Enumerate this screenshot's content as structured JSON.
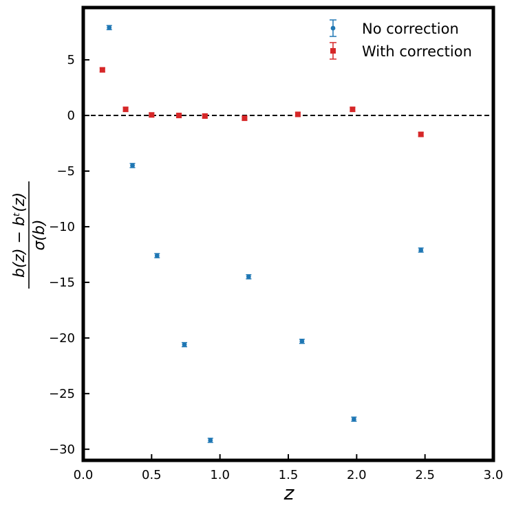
{
  "chart_data": {
    "type": "scatter",
    "title": "",
    "xlabel": "z",
    "ylabel_numerator": "b(z) − bᵗ(z)",
    "ylabel_denominator": "σ(b)",
    "xlim": [
      0.0,
      3.0
    ],
    "ylim": [
      -31.0,
      9.7
    ],
    "grid": false,
    "legend_position": "upper-right",
    "reference_line": {
      "y": 0,
      "style": "dashed",
      "color": "#000000"
    },
    "x_ticks": [
      {
        "value": 0.0,
        "label": "0.0"
      },
      {
        "value": 0.5,
        "label": "0.5"
      },
      {
        "value": 1.0,
        "label": "1.0"
      },
      {
        "value": 1.5,
        "label": "1.5"
      },
      {
        "value": 2.0,
        "label": "2.0"
      },
      {
        "value": 2.5,
        "label": "2.5"
      },
      {
        "value": 3.0,
        "label": "3.0"
      }
    ],
    "y_ticks": [
      {
        "value": 5,
        "label": "5"
      },
      {
        "value": 0,
        "label": "0"
      },
      {
        "value": -5,
        "label": "−5"
      },
      {
        "value": -10,
        "label": "−10"
      },
      {
        "value": -15,
        "label": "−15"
      },
      {
        "value": -20,
        "label": "−20"
      },
      {
        "value": -25,
        "label": "−25"
      },
      {
        "value": -30,
        "label": "−30"
      }
    ],
    "series": [
      {
        "name": "No correction",
        "color": "#1f77b4",
        "marker": "circle",
        "points": [
          {
            "x": 0.19,
            "y": 7.9
          },
          {
            "x": 0.36,
            "y": -4.5
          },
          {
            "x": 0.54,
            "y": -12.6
          },
          {
            "x": 0.74,
            "y": -20.6
          },
          {
            "x": 0.93,
            "y": -29.2
          },
          {
            "x": 1.21,
            "y": -14.5
          },
          {
            "x": 1.6,
            "y": -20.3
          },
          {
            "x": 1.98,
            "y": -27.3
          },
          {
            "x": 2.47,
            "y": -12.1
          }
        ]
      },
      {
        "name": "With correction",
        "color": "#d62728",
        "marker": "square",
        "points": [
          {
            "x": 0.14,
            "y": 4.1
          },
          {
            "x": 0.31,
            "y": 0.55
          },
          {
            "x": 0.5,
            "y": 0.05
          },
          {
            "x": 0.7,
            "y": 0.0
          },
          {
            "x": 0.89,
            "y": -0.05
          },
          {
            "x": 1.18,
            "y": -0.25
          },
          {
            "x": 1.57,
            "y": 0.1
          },
          {
            "x": 1.97,
            "y": 0.55
          },
          {
            "x": 2.47,
            "y": -1.7
          }
        ]
      }
    ]
  }
}
